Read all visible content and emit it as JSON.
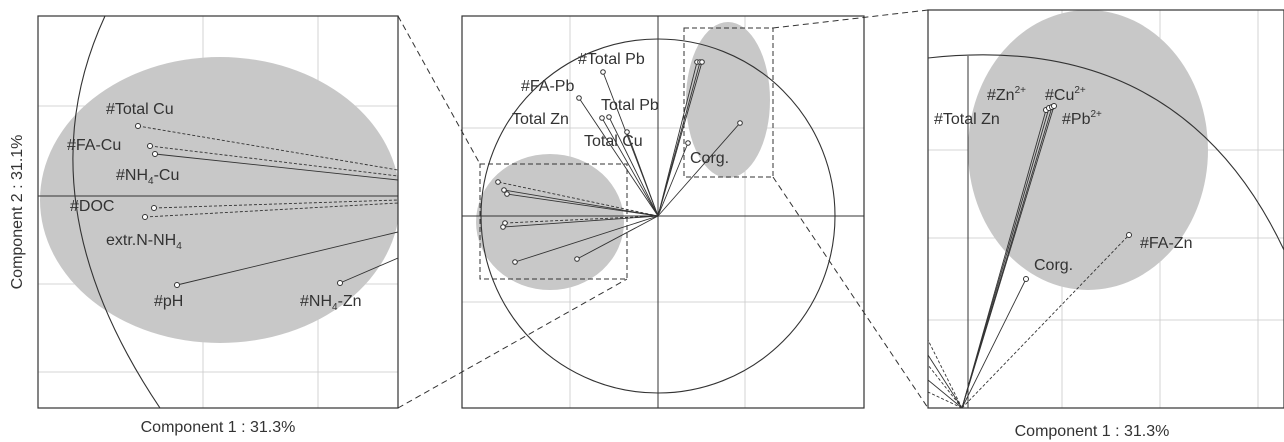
{
  "chart_data": [
    {
      "type": "scatter",
      "panel": "left-zoom",
      "xlabel": "Component 1 : 31.3%",
      "ylabel": "Component  2 : 31.1%",
      "points": [
        {
          "label": "#Total Cu",
          "x": -0.92,
          "y": 0.23
        },
        {
          "label": "#FA-Cu",
          "x": -0.9,
          "y": 0.12
        },
        {
          "label": "#NH4-Cu",
          "x": -0.89,
          "y": 0.1
        },
        {
          "label": "#DOC",
          "x": -0.9,
          "y": -0.03
        },
        {
          "label": "extr.N-NH4",
          "x": -0.91,
          "y": -0.06
        },
        {
          "label": "#pH",
          "x": -0.83,
          "y": -0.28
        },
        {
          "label": "#NH4-Zn",
          "x": -0.55,
          "y": -0.26
        }
      ]
    },
    {
      "type": "scatter",
      "panel": "center-full",
      "xlabel": "",
      "ylabel": "",
      "points": [
        {
          "label": "#Total Pb",
          "x": -0.26,
          "y": 0.82
        },
        {
          "label": "#FA-Pb",
          "x": -0.5,
          "y": 0.7
        },
        {
          "label": "Total Pb",
          "x": -0.26,
          "y": 0.54
        },
        {
          "label": "Total Zn",
          "x": -0.35,
          "y": 0.55
        },
        {
          "label": "Total Cu",
          "x": -0.34,
          "y": 0.53
        },
        {
          "label": "Corg.",
          "x": 0.14,
          "y": 0.38
        },
        {
          "label": "#Zn2+ / #Cu2+ / #Pb2+ / #Total Zn",
          "x": 0.2,
          "y": 0.88
        },
        {
          "label": "#FA-Zn",
          "x": 0.42,
          "y": 0.54
        }
      ]
    },
    {
      "type": "scatter",
      "panel": "right-zoom",
      "xlabel": "Component 1 : 31.3%",
      "ylabel": "",
      "points": [
        {
          "label": "#Zn2+",
          "x": 0.19,
          "y": 0.87
        },
        {
          "label": "#Cu2+",
          "x": 0.2,
          "y": 0.88
        },
        {
          "label": "#Pb2+",
          "x": 0.21,
          "y": 0.87
        },
        {
          "label": "#Total Zn",
          "x": 0.18,
          "y": 0.86
        },
        {
          "label": "Corg.",
          "x": 0.14,
          "y": 0.38
        },
        {
          "label": "#FA-Zn",
          "x": 0.42,
          "y": 0.54
        }
      ]
    }
  ],
  "labels": {
    "left_total_cu": "#Total Cu",
    "left_fa_cu": "#FA-Cu",
    "left_nh4cu_pre": "#NH",
    "left_nh4cu_sub": "4",
    "left_nh4cu_post": "-Cu",
    "left_doc": "#DOC",
    "left_extr": "extr.N-NH",
    "left_extr_sub": "4",
    "left_ph": "#pH",
    "left_nh4zn_pre": "#NH",
    "left_nh4zn_sub": "4",
    "left_nh4zn_post": "-Zn",
    "left_xlabel": "Component 1 : 31.3%",
    "left_ylabel": "Component  2 : 31.1%",
    "center_total_pb_h": "#Total Pb",
    "center_fa_pb": "#FA-Pb",
    "center_total_pb": "Total Pb",
    "center_total_zn": "Total Zn",
    "center_total_cu": "Total Cu",
    "center_corg": "Corg.",
    "right_zn_pre": "#Zn",
    "right_zn_sup": "2+",
    "right_cu_pre": "#Cu",
    "right_cu_sup": "2+",
    "right_pb_pre": "#Pb",
    "right_pb_sup": "2+",
    "right_total_zn": "#Total Zn",
    "right_corg": "Corg.",
    "right_fa_zn": "#FA-Zn",
    "right_xlabel": "Component 1 : 31.3%"
  },
  "colors": {
    "cluster": "#c8c8c8",
    "line": "#333333"
  }
}
